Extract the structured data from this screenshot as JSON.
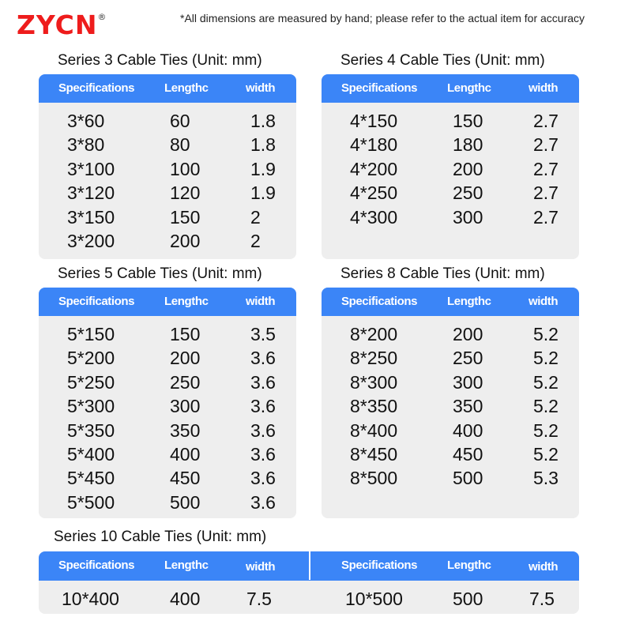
{
  "brand": {
    "logo": "ZYCN",
    "registered": "®"
  },
  "note": "*All dimensions are measured by hand; please refer to the actual item for accuracy",
  "colors": {
    "brand_red": "#ee1c1c",
    "header_blue": "#3b85f7",
    "body_gray": "#eeeeee"
  },
  "headers": {
    "spec": "Specifications",
    "length": "Lengthc",
    "width": "width"
  },
  "tables": [
    {
      "title": "Series 3 Cable Ties (Unit: mm)",
      "rows": [
        [
          "3*60",
          "60",
          "1.8"
        ],
        [
          "3*80",
          "80",
          "1.8"
        ],
        [
          "3*100",
          "100",
          "1.9"
        ],
        [
          "3*120",
          "120",
          "1.9"
        ],
        [
          "3*150",
          "150",
          "2"
        ],
        [
          "3*200",
          "200",
          "2"
        ]
      ]
    },
    {
      "title": "Series 4 Cable Ties (Unit: mm)",
      "rows": [
        [
          "4*150",
          "150",
          "2.7"
        ],
        [
          "4*180",
          "180",
          "2.7"
        ],
        [
          "4*200",
          "200",
          "2.7"
        ],
        [
          "4*250",
          "250",
          "2.7"
        ],
        [
          "4*300",
          "300",
          "2.7"
        ]
      ]
    },
    {
      "title": "Series 5 Cable Ties (Unit: mm)",
      "rows": [
        [
          "5*150",
          "150",
          "3.5"
        ],
        [
          "5*200",
          "200",
          "3.6"
        ],
        [
          "5*250",
          "250",
          "3.6"
        ],
        [
          "5*300",
          "300",
          "3.6"
        ],
        [
          "5*350",
          "350",
          "3.6"
        ],
        [
          "5*400",
          "400",
          "3.6"
        ],
        [
          "5*450",
          "450",
          "3.6"
        ],
        [
          "5*500",
          "500",
          "3.6"
        ]
      ]
    },
    {
      "title": "Series 8 Cable Ties (Unit: mm)",
      "rows": [
        [
          "8*200",
          "200",
          "5.2"
        ],
        [
          "8*250",
          "250",
          "5.2"
        ],
        [
          "8*300",
          "300",
          "5.2"
        ],
        [
          "8*350",
          "350",
          "5.2"
        ],
        [
          "8*400",
          "400",
          "5.2"
        ],
        [
          "8*450",
          "450",
          "5.2"
        ],
        [
          "8*500",
          "500",
          "5.3"
        ]
      ]
    }
  ],
  "series10": {
    "title": "Series 10 Cable Ties (Unit: mm)",
    "rows": [
      [
        "10*400",
        "400",
        "7.5"
      ],
      [
        "10*500",
        "500",
        "7.5"
      ]
    ]
  }
}
